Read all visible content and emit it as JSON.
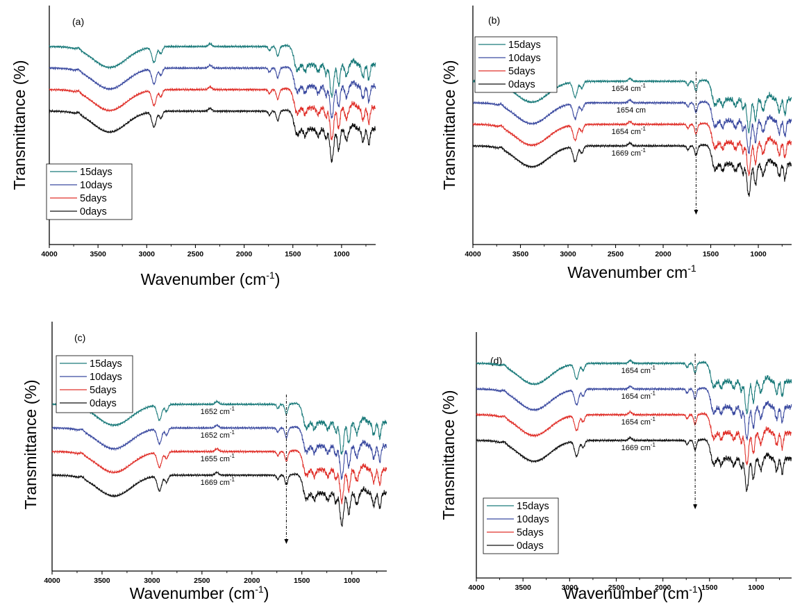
{
  "chart_data": [
    {
      "type": "line",
      "panel_label": "(a)",
      "ylabel": "Transmittance (%)",
      "xlabel": "Wavenumber (cm",
      "xlabel_sup": "-1",
      "xlabel_tail": ")",
      "xlim": [
        4000,
        650
      ],
      "x_reversed": true,
      "xticks": [
        4000,
        3500,
        3000,
        2500,
        2000,
        1500,
        1000
      ],
      "xtick_labels": [
        "4000",
        "3500",
        "3000",
        "2500",
        "2000",
        "1500",
        "1000"
      ],
      "y_ticks_shown": false,
      "grid": false,
      "legend_position": "bottom-left",
      "series": [
        {
          "name": "15days",
          "color": "#1a7a7a",
          "offset": 3
        },
        {
          "name": "10days",
          "color": "#3b4aa0",
          "offset": 2
        },
        {
          "name": "5days",
          "color": "#e0302a",
          "offset": 1
        },
        {
          "name": "0days",
          "color": "#111111",
          "offset": 0
        }
      ],
      "annotations": []
    },
    {
      "type": "line",
      "panel_label": "(b)",
      "ylabel": "Transmittance (%)",
      "xlabel": "Wavenumber cm",
      "xlabel_sup": "-1",
      "xlabel_tail": "",
      "xlim": [
        4000,
        650
      ],
      "x_reversed": true,
      "xticks": [
        4000,
        3500,
        3000,
        2500,
        2000,
        1500,
        1000
      ],
      "xtick_labels": [
        "4000",
        "3500",
        "3000",
        "2500",
        "2000",
        "1500",
        "1000"
      ],
      "y_ticks_shown": false,
      "grid": false,
      "legend_position": "top-left",
      "marker_wavenumber": 1654,
      "series": [
        {
          "name": "15days",
          "color": "#1a7a7a",
          "offset": 3
        },
        {
          "name": "10days",
          "color": "#3b4aa0",
          "offset": 2
        },
        {
          "name": "5days",
          "color": "#e0302a",
          "offset": 1
        },
        {
          "name": "0days",
          "color": "#111111",
          "offset": 0
        }
      ],
      "annotations": [
        {
          "text": "1654 cm",
          "sup": "-1",
          "series": "15days"
        },
        {
          "text": "1654 cm",
          "sup": "",
          "series": "10days"
        },
        {
          "text": "1654 cm",
          "sup": "-1",
          "series": "5days"
        },
        {
          "text": "1669 cm",
          "sup": "-1",
          "series": "0days"
        }
      ]
    },
    {
      "type": "line",
      "panel_label": "(c)",
      "ylabel": "Transmittance (%)",
      "xlabel": "Wavenumber (cm",
      "xlabel_sup": "-1",
      "xlabel_tail": ")",
      "xlim": [
        4000,
        650
      ],
      "x_reversed": true,
      "xticks": [
        4000,
        3500,
        3000,
        2500,
        2000,
        1500,
        1000
      ],
      "xtick_labels": [
        "4000",
        "3500",
        "3000",
        "2500",
        "2000",
        "1500",
        "1000"
      ],
      "y_ticks_shown": false,
      "grid": false,
      "legend_position": "top-left",
      "marker_wavenumber": 1655,
      "series": [
        {
          "name": "15days",
          "color": "#1a7a7a",
          "offset": 3
        },
        {
          "name": "10days",
          "color": "#3b4aa0",
          "offset": 2
        },
        {
          "name": "5days",
          "color": "#e0302a",
          "offset": 1
        },
        {
          "name": "0days",
          "color": "#111111",
          "offset": 0
        }
      ],
      "annotations": [
        {
          "text": "1652 cm",
          "sup": "-1",
          "series": "15days"
        },
        {
          "text": "1652 cm",
          "sup": "-1",
          "series": "10days"
        },
        {
          "text": "1655 cm",
          "sup": "-1",
          "series": "5days"
        },
        {
          "text": "1669 cm",
          "sup": "-1",
          "series": "0days"
        }
      ]
    },
    {
      "type": "line",
      "panel_label": "(d)",
      "ylabel": "Transmittance (%)",
      "xlabel": "Wavenumber (cm",
      "xlabel_sup": "-1",
      "xlabel_tail": ")",
      "xlim": [
        4000,
        620
      ],
      "x_reversed": true,
      "xticks": [
        4000,
        3500,
        3000,
        2500,
        2000,
        1500,
        1000
      ],
      "xtick_labels": [
        "4000",
        "3500",
        "3000",
        "2500",
        "2000",
        "1500",
        "1000"
      ],
      "y_ticks_shown": false,
      "grid": false,
      "legend_position": "bottom-left",
      "marker_wavenumber": 1654,
      "series": [
        {
          "name": "15days",
          "color": "#1a7a7a",
          "offset": 3
        },
        {
          "name": "10days",
          "color": "#3b4aa0",
          "offset": 2
        },
        {
          "name": "5days",
          "color": "#e0302a",
          "offset": 1
        },
        {
          "name": "0days",
          "color": "#111111",
          "offset": 0
        }
      ],
      "annotations": [
        {
          "text": "1654 cm",
          "sup": "-1",
          "series": "15days"
        },
        {
          "text": "1654 cm",
          "sup": "-1",
          "series": "10days"
        },
        {
          "text": "1654 cm",
          "sup": "-1",
          "series": "5days"
        },
        {
          "text": "1669 cm",
          "sup": "-1",
          "series": "0days"
        }
      ]
    }
  ]
}
